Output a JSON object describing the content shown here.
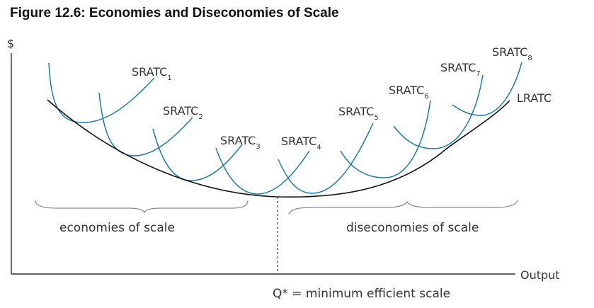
{
  "title": "Figure 12.6: Economies and Diseconomies of Scale",
  "axes": {
    "y_label": "$",
    "x_label": "Output"
  },
  "curves": {
    "lratc": {
      "label": "LRATC",
      "color": "#111111"
    },
    "sratc_color": "#1a7ca8",
    "sratc": [
      {
        "base": "SRATC",
        "sub": "1"
      },
      {
        "base": "SRATC",
        "sub": "2"
      },
      {
        "base": "SRATC",
        "sub": "3"
      },
      {
        "base": "SRATC",
        "sub": "4"
      },
      {
        "base": "SRATC",
        "sub": "5"
      },
      {
        "base": "SRATC",
        "sub": "6"
      },
      {
        "base": "SRATC",
        "sub": "7"
      },
      {
        "base": "SRATC",
        "sub": "8"
      }
    ]
  },
  "regions": {
    "economies": "economies of scale",
    "diseconomies": "diseconomies of scale"
  },
  "min_point": {
    "label": "Q* = minimum efficient scale"
  }
}
